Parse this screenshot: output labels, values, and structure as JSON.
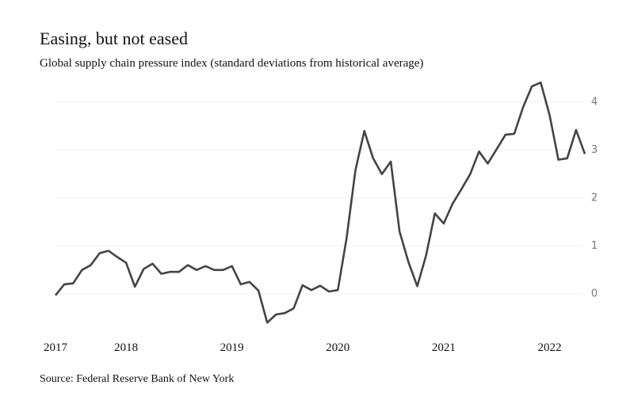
{
  "chart_data": {
    "type": "line",
    "title": "Easing, but not eased",
    "subtitle": "Global supply chain pressure index (standard deviations from historical average)",
    "source": "Source: Federal Reserve Bank of New York",
    "categories": [
      "2017",
      null,
      null,
      null,
      null,
      null,
      null,
      null,
      "2018",
      null,
      null,
      null,
      null,
      null,
      null,
      null,
      null,
      null,
      null,
      null,
      "2019",
      null,
      null,
      null,
      null,
      null,
      null,
      null,
      null,
      null,
      null,
      null,
      "2020",
      null,
      null,
      null,
      null,
      null,
      null,
      null,
      null,
      null,
      null,
      null,
      "2021",
      null,
      null,
      null,
      null,
      null,
      null,
      null,
      null,
      null,
      null,
      null,
      "2022",
      null,
      null,
      null,
      null
    ],
    "series": [
      {
        "name": "Global supply chain pressure index",
        "color": "#444444",
        "values": [
          -0.03,
          0.2,
          0.22,
          0.5,
          0.6,
          0.85,
          0.9,
          0.77,
          0.65,
          0.15,
          0.52,
          0.63,
          0.42,
          0.46,
          0.46,
          0.6,
          0.5,
          0.58,
          0.5,
          0.5,
          0.58,
          0.2,
          0.25,
          0.07,
          -0.6,
          -0.43,
          -0.4,
          -0.3,
          0.18,
          0.08,
          0.17,
          0.05,
          0.08,
          1.17,
          2.58,
          3.4,
          2.83,
          2.5,
          2.76,
          1.3,
          0.67,
          0.16,
          0.8,
          1.68,
          1.47,
          1.88,
          2.18,
          2.5,
          2.97,
          2.72,
          3.02,
          3.32,
          3.34,
          3.9,
          4.33,
          4.41,
          3.73,
          2.8,
          2.83,
          3.42,
          2.92
        ]
      }
    ],
    "ylim": [
      -0.7,
      4.5
    ],
    "yticks": [
      0,
      1,
      2,
      3,
      4
    ],
    "grid": true
  }
}
